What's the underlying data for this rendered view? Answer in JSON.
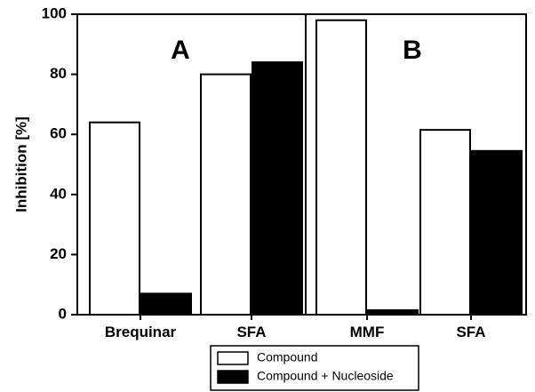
{
  "chart_data": {
    "type": "bar",
    "ylabel": "Inhibition [%]",
    "xlabel": "",
    "ylim": [
      0,
      100
    ],
    "yticks": [
      0,
      20,
      40,
      60,
      80,
      100
    ],
    "grid": false,
    "legend_position": "bottom",
    "panels": [
      {
        "label": "A",
        "categories": [
          "Brequinar",
          "SFA"
        ]
      },
      {
        "label": "B",
        "categories": [
          "MMF",
          "SFA"
        ]
      }
    ],
    "categories": [
      "Brequinar",
      "SFA",
      "MMF",
      "SFA"
    ],
    "series": [
      {
        "name": "Compound",
        "color": "#ffffff",
        "values": [
          64,
          80,
          98,
          61.5
        ]
      },
      {
        "name": "Compound + Nucleoside",
        "color": "#000000",
        "values": [
          7,
          84,
          1.5,
          54.5
        ]
      }
    ]
  }
}
